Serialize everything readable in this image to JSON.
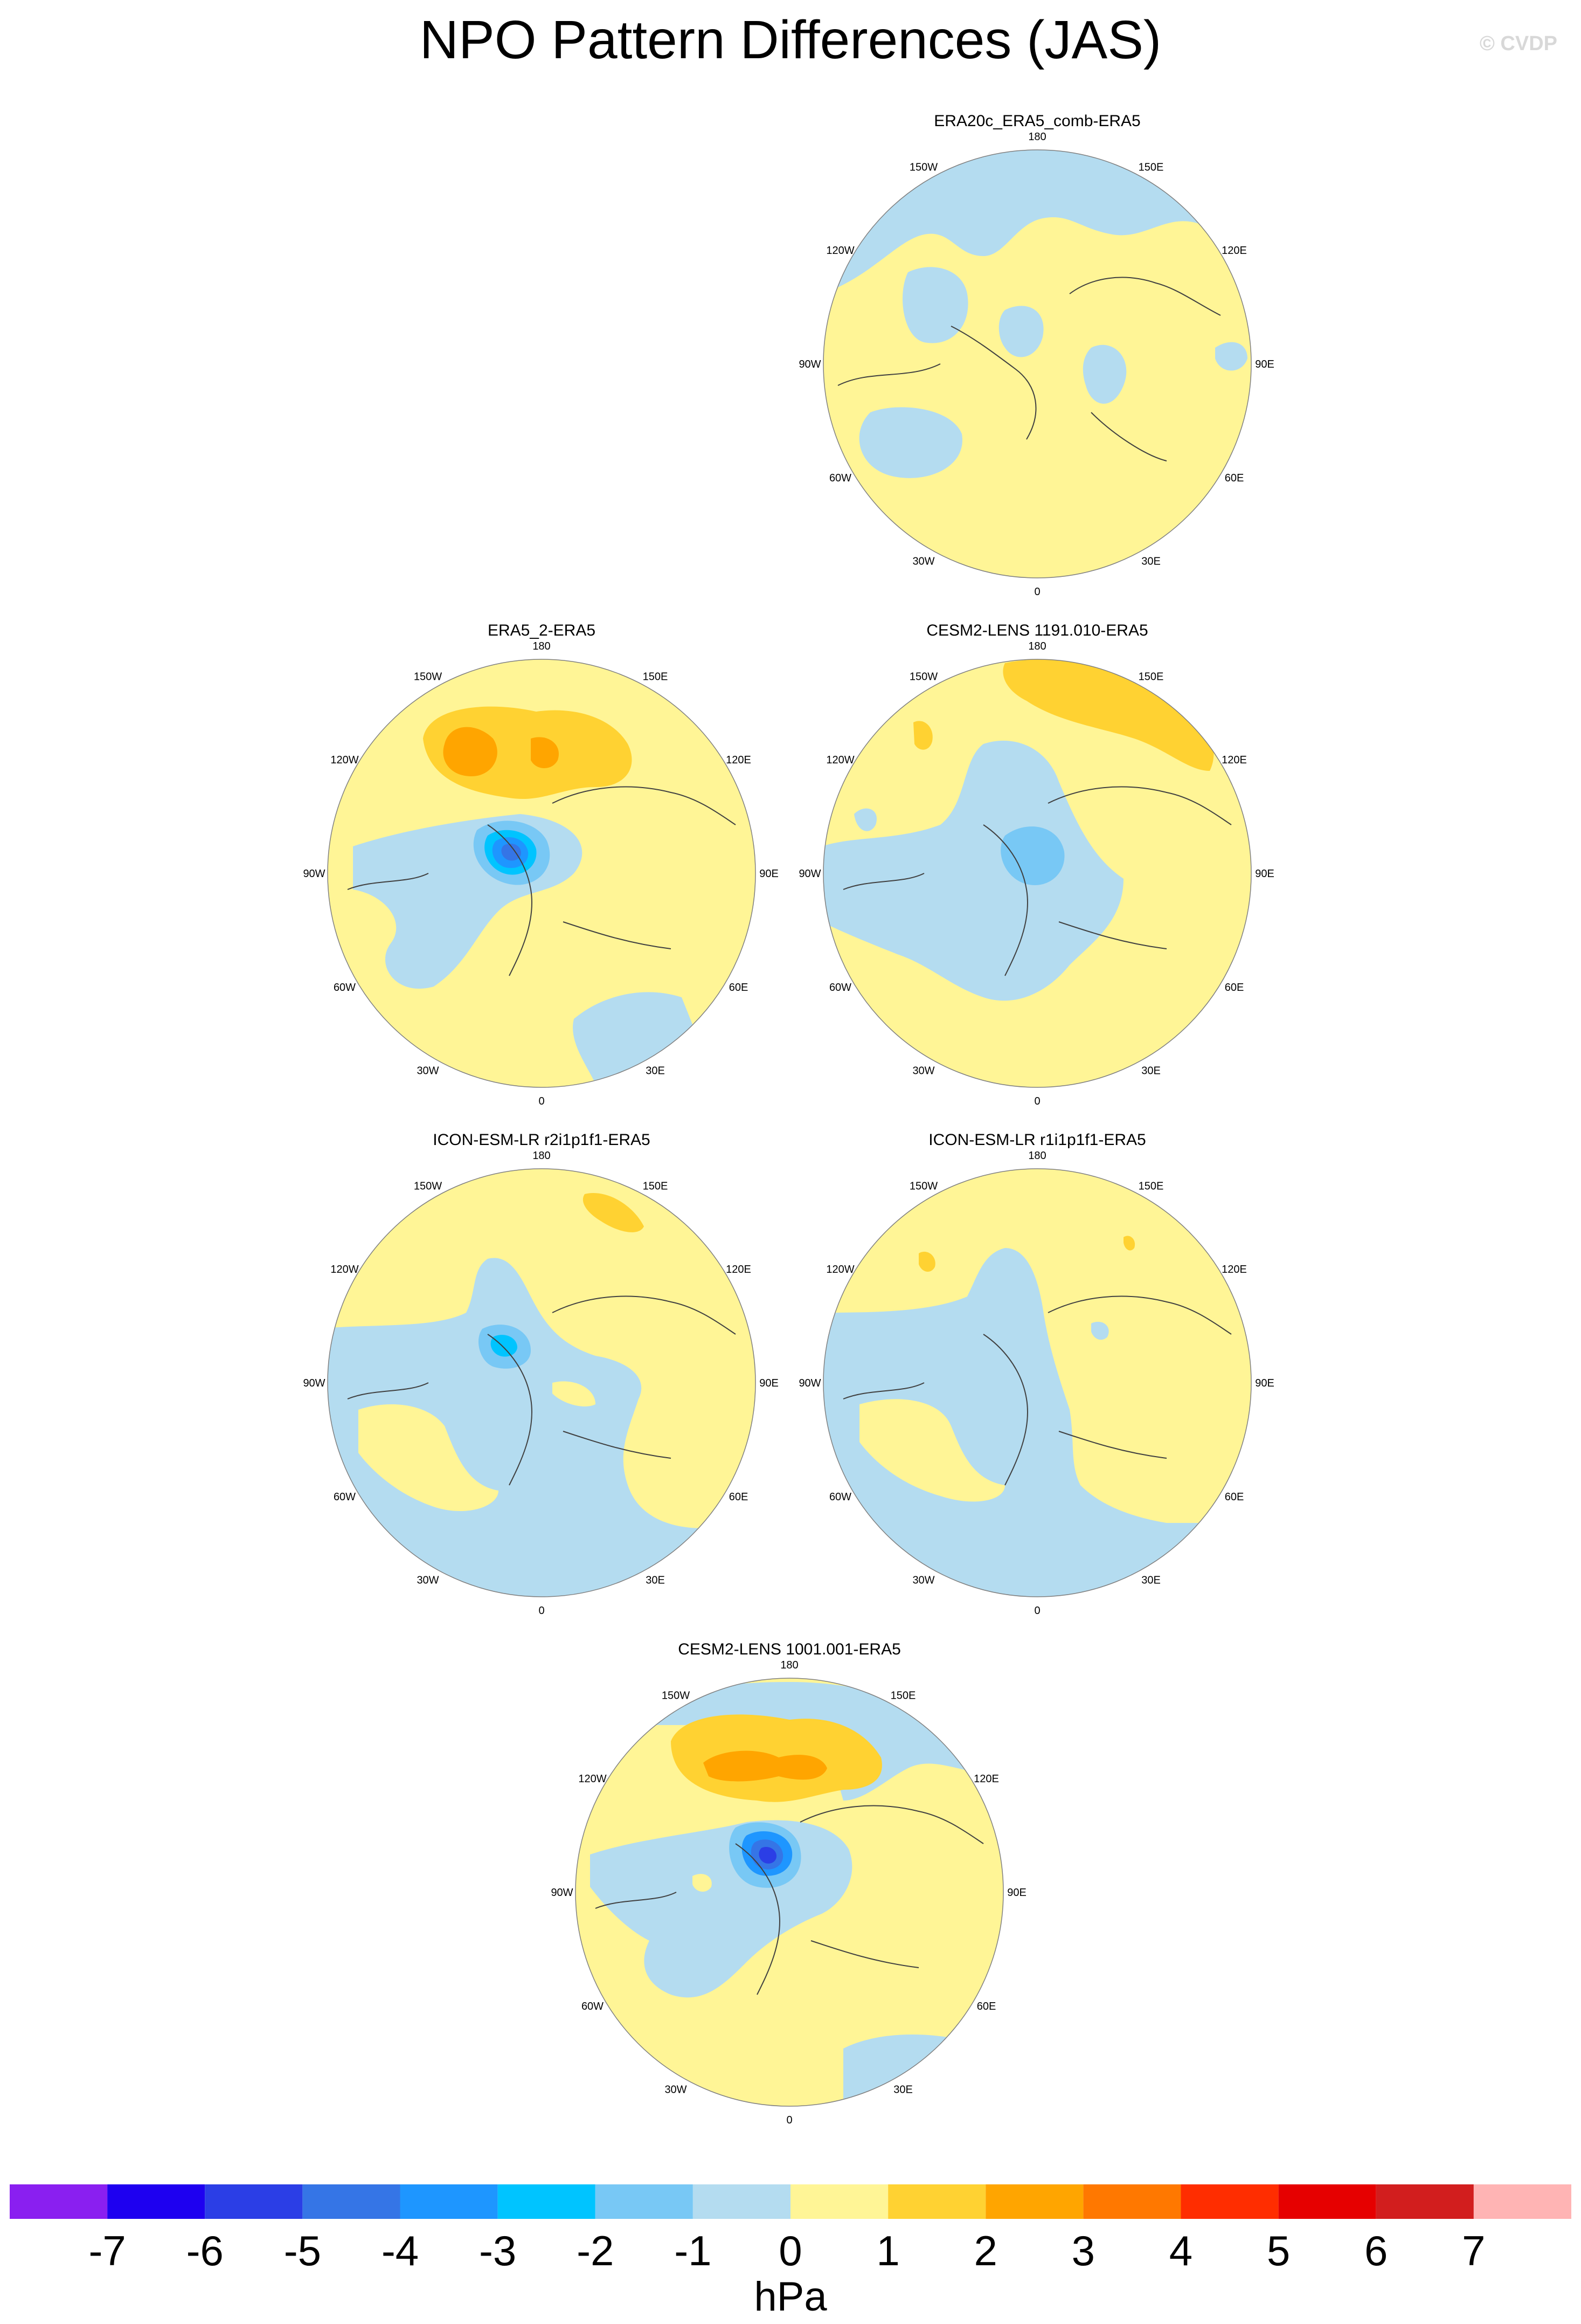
{
  "title": "NPO Pattern Differences (JAS)",
  "credit": "© CVDP",
  "chart_data": {
    "type": "heatmap",
    "projection": "north polar stereographic",
    "variable": "sea level pressure pattern difference",
    "panels": [
      {
        "id": "era20c",
        "title": "ERA20c_ERA5_comb-ERA5"
      },
      {
        "id": "era5-2",
        "title": "ERA5_2-ERA5"
      },
      {
        "id": "cesm2-1191",
        "title": "CESM2-LENS 1191.010-ERA5"
      },
      {
        "id": "icon-r2",
        "title": "ICON-ESM-LR r2i1p1f1-ERA5"
      },
      {
        "id": "icon-r1",
        "title": "ICON-ESM-LR r1i1p1f1-ERA5"
      },
      {
        "id": "cesm2-1001",
        "title": "CESM2-LENS 1001.001-ERA5"
      }
    ],
    "longitude_labels": [
      "180",
      "150E",
      "120E",
      "90E",
      "60E",
      "30E",
      "0",
      "30W",
      "60W",
      "90W",
      "120W",
      "150W"
    ],
    "colorbar": {
      "units": "hPa",
      "levels": [
        -7,
        -6,
        -5,
        -4,
        -3,
        -2,
        -1,
        0,
        1,
        2,
        3,
        4,
        5,
        6,
        7
      ],
      "labels": [
        "-7",
        "-6",
        "-5",
        "-4",
        "-3",
        "-2",
        "-1",
        "0",
        "1",
        "2",
        "3",
        "4",
        "5",
        "6",
        "7"
      ],
      "colors": [
        "#8a1ff0",
        "#1e00f0",
        "#2b3ee6",
        "#3575e6",
        "#1e96ff",
        "#00c4ff",
        "#78c8f5",
        "#b4dcf0",
        "#fff596",
        "#ffd232",
        "#ffa500",
        "#ff7800",
        "#ff2d00",
        "#e60000",
        "#d21e1e",
        "#ffb4b4"
      ]
    }
  }
}
